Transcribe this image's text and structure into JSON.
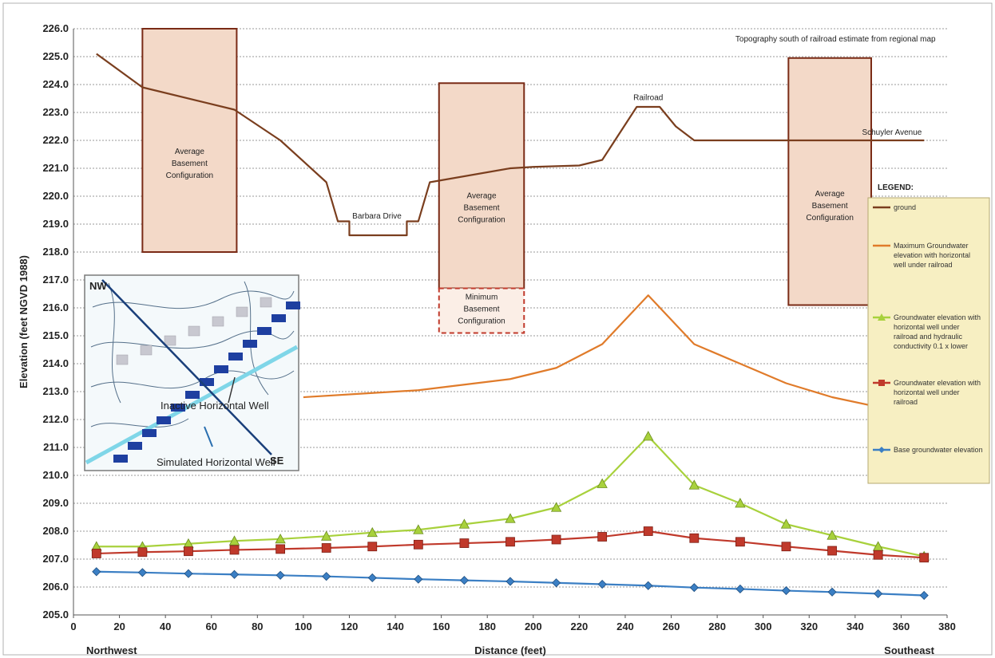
{
  "chart_data": {
    "type": "line",
    "xlabel": "Distance (feet)",
    "ylabel": "Elevation (feet NGVD 1988)",
    "xlim": [
      0,
      380
    ],
    "ylim": [
      205.0,
      226.0
    ],
    "x_ticks": [
      "0",
      "20",
      "40",
      "60",
      "80",
      "100",
      "120",
      "140",
      "160",
      "180",
      "200",
      "220",
      "240",
      "260",
      "280",
      "300",
      "320",
      "340",
      "360",
      "380"
    ],
    "y_ticks": [
      "205.0",
      "206.0",
      "207.0",
      "208.0",
      "209.0",
      "210.0",
      "211.0",
      "212.0",
      "213.0",
      "214.0",
      "215.0",
      "216.0",
      "217.0",
      "218.0",
      "219.0",
      "220.0",
      "221.0",
      "222.0",
      "223.0",
      "224.0",
      "225.0",
      "226.0"
    ],
    "x_end_labels": {
      "left": "Northwest",
      "right": "Southeast"
    },
    "grid": "horizontal",
    "legend_title": "LEGEND:",
    "legend_position": "right",
    "series": [
      {
        "name": "ground",
        "color": "#7a3e1e",
        "marker": "none",
        "x": [
          10,
          30,
          70,
          90,
          110,
          115,
          120,
          120,
          145,
          145,
          150,
          155,
          190,
          200,
          220,
          230,
          245,
          255,
          262,
          270,
          370
        ],
        "y": [
          225.1,
          223.9,
          223.1,
          222.0,
          220.5,
          219.1,
          219.1,
          218.6,
          218.6,
          219.1,
          219.1,
          220.5,
          221.0,
          221.05,
          221.1,
          221.3,
          223.2,
          223.2,
          222.5,
          222.0,
          222.0
        ]
      },
      {
        "name": "Maximum Groundwater elevation with horizontal well under railroad",
        "color": "#e07b2a",
        "marker": "none",
        "x": [
          100,
          130,
          150,
          170,
          190,
          210,
          230,
          250,
          270,
          290,
          310,
          330,
          350
        ],
        "y": [
          212.8,
          212.95,
          213.05,
          213.25,
          213.45,
          213.85,
          214.7,
          216.45,
          214.7,
          214.0,
          213.3,
          212.8,
          212.45
        ]
      },
      {
        "name": "Groundwater elevation with horizontal well under railroad and hydraulic conductivity 0.1 x lower",
        "color": "#a8d13c",
        "marker": "triangle",
        "x": [
          10,
          30,
          50,
          70,
          90,
          110,
          130,
          150,
          170,
          190,
          210,
          230,
          250,
          270,
          290,
          310,
          330,
          350,
          370
        ],
        "y": [
          207.45,
          207.45,
          207.55,
          207.65,
          207.72,
          207.82,
          207.95,
          208.05,
          208.25,
          208.45,
          208.85,
          209.7,
          211.4,
          209.65,
          209.0,
          208.25,
          207.85,
          207.45,
          207.1
        ]
      },
      {
        "name": "Groundwater elevation with horizontal well under railroad",
        "color": "#c0392b",
        "marker": "square",
        "x": [
          10,
          30,
          50,
          70,
          90,
          110,
          130,
          150,
          170,
          190,
          210,
          230,
          250,
          270,
          290,
          310,
          330,
          350,
          370
        ],
        "y": [
          207.2,
          207.25,
          207.28,
          207.33,
          207.36,
          207.4,
          207.45,
          207.52,
          207.57,
          207.62,
          207.7,
          207.8,
          208.0,
          207.75,
          207.62,
          207.45,
          207.3,
          207.15,
          207.05
        ]
      },
      {
        "name": "Base groundwater elevation",
        "color": "#3b7fc4",
        "marker": "diamond",
        "x": [
          10,
          30,
          50,
          70,
          90,
          110,
          130,
          150,
          170,
          190,
          210,
          230,
          250,
          270,
          290,
          310,
          330,
          350,
          370
        ],
        "y": [
          206.55,
          206.52,
          206.48,
          206.45,
          206.42,
          206.38,
          206.33,
          206.28,
          206.24,
          206.2,
          206.15,
          206.1,
          206.05,
          205.98,
          205.93,
          205.87,
          205.82,
          205.76,
          205.7
        ]
      }
    ],
    "legend_entries": [
      {
        "label": "ground",
        "color": "#7a3e1e",
        "marker": "none"
      },
      {
        "label": "Maximum Groundwater elevation with horizontal well under railroad",
        "color": "#e07b2a",
        "marker": "none"
      },
      {
        "label": "Groundwater elevation with horizontal well under railroad and hydraulic conductivity 0.1 x lower",
        "color": "#a8d13c",
        "marker": "triangle"
      },
      {
        "label": "Groundwater elevation with horizontal well under railroad",
        "color": "#c0392b",
        "marker": "square"
      },
      {
        "label": "Base groundwater elevation",
        "color": "#3b7fc4",
        "marker": "diamond"
      }
    ],
    "basements": [
      {
        "x0": 30,
        "x1": 71,
        "y0": 218.0,
        "y1": 226.0,
        "style": "solid",
        "label": "Average Basement Configuration"
      },
      {
        "x0": 159,
        "x1": 196,
        "y0": 216.7,
        "y1": 224.05,
        "style": "solid",
        "label": "Average Basement Configuration"
      },
      {
        "x0": 159,
        "x1": 196,
        "y0": 215.1,
        "y1": 216.7,
        "style": "dashed",
        "label": "Minimum Basement Configuration"
      },
      {
        "x0": 311,
        "x1": 347,
        "y0": 216.1,
        "y1": 224.95,
        "style": "solid",
        "label": "Average Basement Configuration"
      }
    ],
    "annotations": [
      {
        "text": "Topography south of railroad estimate from regional map",
        "x": 375,
        "y": 225.55,
        "anchor": "end",
        "color": "#7a3e1e"
      },
      {
        "text": "Barbara Drive",
        "x": 132,
        "y": 219.2,
        "anchor": "middle",
        "color": "#222222"
      },
      {
        "text": "Railroad",
        "x": 250,
        "y": 223.45,
        "anchor": "middle",
        "color": "#222222"
      },
      {
        "text": "Schuyler Avenue",
        "x": 369,
        "y": 222.2,
        "anchor": "end",
        "color": "#222222"
      }
    ],
    "inset": {
      "labels": [
        "NW",
        "SE",
        "Inactive Horizontal Well",
        "Simulated Horizontal Well"
      ]
    }
  }
}
